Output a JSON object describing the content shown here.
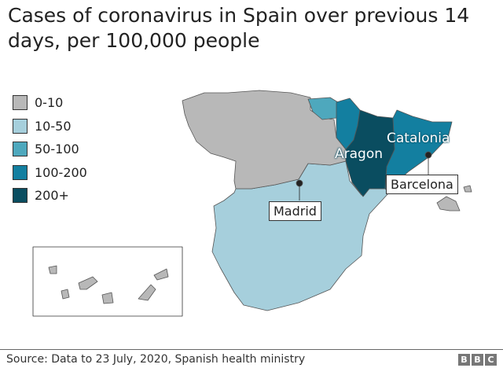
{
  "title": "Cases of coronavirus in Spain over previous 14 days, per 100,000 people",
  "legend": [
    {
      "label": "0-10",
      "color": "#b8b8b8"
    },
    {
      "label": "10-50",
      "color": "#a6cfdc"
    },
    {
      "label": "50-100",
      "color": "#4ea8bd"
    },
    {
      "label": "100-200",
      "color": "#137fa0"
    },
    {
      "label": "200+",
      "color": "#0a4d60"
    }
  ],
  "labels": {
    "aragon": "Aragon",
    "catalonia": "Catalonia",
    "barcelona": "Barcelona",
    "madrid": "Madrid"
  },
  "footer": {
    "source": "Source: Data to 23 July, 2020, Spanish health ministry",
    "logo": [
      "B",
      "B",
      "C"
    ]
  }
}
